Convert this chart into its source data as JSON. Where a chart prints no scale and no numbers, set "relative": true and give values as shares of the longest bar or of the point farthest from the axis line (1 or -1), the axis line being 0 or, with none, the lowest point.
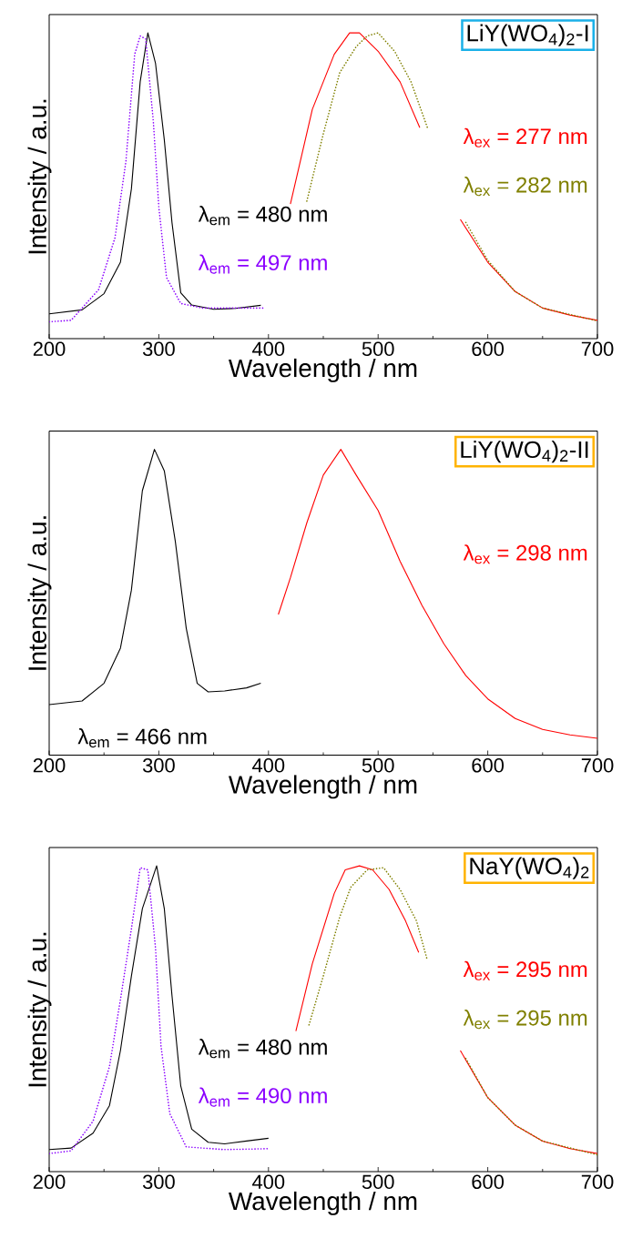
{
  "chart_data": [
    {
      "type": "line",
      "title": "LiY(WO$_{4}$)$_{2}$-I",
      "xlabel": "Wavelength / nm",
      "ylabel": "Intensity / a.u.",
      "relative": true,
      "xlim": [
        200,
        700
      ],
      "xticks": [
        200,
        300,
        400,
        500,
        600,
        700
      ],
      "series": [
        {
          "name": "λ$_{em}$ = 480 nm",
          "color": "#000000",
          "line_style": "solid",
          "x": [
            200,
            230,
            250,
            265,
            275,
            283,
            290,
            297,
            305,
            312,
            320,
            330,
            350,
            370,
            393
          ],
          "values": [
            0.081,
            0.094,
            0.147,
            0.25,
            0.49,
            0.84,
            1.0,
            0.9,
            0.65,
            0.38,
            0.15,
            0.11,
            0.096,
            0.099,
            0.109
          ]
        },
        {
          "name": "λ$_{em}$ = 497 nm",
          "color": "#8b00ff",
          "line_style": "dotted",
          "x": [
            200,
            220,
            245,
            260,
            270,
            278,
            283,
            288,
            295,
            300,
            307,
            320,
            340,
            380,
            395
          ],
          "values": [
            0.055,
            0.06,
            0.16,
            0.33,
            0.58,
            0.93,
            0.99,
            0.98,
            0.71,
            0.43,
            0.2,
            0.115,
            0.1,
            0.1,
            0.1
          ]
        },
        {
          "name": "λ$_{ex}$ = 277 nm",
          "color": "#ff0000",
          "line_style": "solid",
          "x": [
            420,
            440,
            460,
            474,
            483,
            500,
            520,
            538,
            555,
            575,
            600,
            625,
            650,
            675,
            700
          ],
          "values": [
            0.44,
            0.75,
            0.93,
            1.0,
            1.0,
            0.94,
            0.84,
            0.69,
            null,
            0.39,
            0.25,
            0.154,
            0.1,
            0.077,
            0.06
          ]
        },
        {
          "name": "λ$_{ex}$ = 282 nm",
          "color": "#808000",
          "line_style": "dotted",
          "x": [
            435,
            450,
            465,
            480,
            490,
            500,
            515,
            530,
            545,
            560,
            580,
            600,
            625,
            650,
            700
          ],
          "values": [
            0.45,
            0.67,
            0.87,
            0.955,
            0.99,
            1.0,
            0.94,
            0.84,
            0.69,
            null,
            0.38,
            0.256,
            0.154,
            0.1,
            0.058
          ]
        }
      ]
    },
    {
      "type": "line",
      "title": "LiY(WO$_{4}$)$_{2}$-II",
      "xlabel": "Wavelength / nm",
      "ylabel": "Intensity / a.u.",
      "relative": true,
      "xlim": [
        200,
        700
      ],
      "xticks": [
        200,
        300,
        400,
        500,
        600,
        700
      ],
      "series": [
        {
          "name": "λ$_{em}$ = 466 nm",
          "color": "#000000",
          "line_style": "solid",
          "x": [
            200,
            230,
            250,
            265,
            275,
            285,
            296,
            305,
            315,
            325,
            335,
            345,
            360,
            380,
            393
          ],
          "values": [
            0.165,
            0.177,
            0.235,
            0.35,
            0.54,
            0.865,
            1.0,
            0.93,
            0.7,
            0.415,
            0.235,
            0.207,
            0.21,
            0.22,
            0.235
          ]
        },
        {
          "name": "λ$_{ex}$ = 298 nm",
          "color": "#ff0000",
          "line_style": "solid",
          "x": [
            409,
            420,
            435,
            450,
            466,
            480,
            500,
            520,
            540,
            560,
            580,
            600,
            625,
            650,
            675,
            700
          ],
          "values": [
            0.46,
            0.58,
            0.76,
            0.916,
            1.0,
            0.916,
            0.8,
            0.634,
            0.49,
            0.364,
            0.26,
            0.184,
            0.12,
            0.084,
            0.066,
            0.055
          ]
        }
      ]
    },
    {
      "type": "line",
      "title": "NaY(WO$_{4}$)$_{2}$",
      "xlabel": "Wavelength / nm",
      "ylabel": "Intensity / a.u.",
      "relative": true,
      "xlim": [
        200,
        700
      ],
      "xticks": [
        200,
        300,
        400,
        500,
        600,
        700
      ],
      "series": [
        {
          "name": "λ$_{em}$ = 480 nm",
          "color": "#000000",
          "line_style": "solid",
          "x": [
            200,
            220,
            240,
            255,
            265,
            275,
            285,
            298,
            305,
            312,
            320,
            330,
            345,
            360,
            380,
            400
          ],
          "values": [
            0.072,
            0.077,
            0.126,
            0.216,
            0.396,
            0.64,
            0.86,
            1.0,
            0.86,
            0.576,
            0.28,
            0.139,
            0.096,
            0.091,
            0.1,
            0.109
          ]
        },
        {
          "name": "λ$_{em}$ = 490 nm",
          "color": "#8b00ff",
          "line_style": "dotted",
          "x": [
            200,
            220,
            240,
            255,
            265,
            275,
            283,
            290,
            297,
            302,
            310,
            325,
            360,
            400
          ],
          "values": [
            0.059,
            0.068,
            0.165,
            0.344,
            0.563,
            0.794,
            0.994,
            0.987,
            0.73,
            0.41,
            0.19,
            0.081,
            0.072,
            0.075
          ]
        },
        {
          "name": "λ$_{ex}$ = 295 nm",
          "color": "#ff0000",
          "line_style": "solid",
          "x": [
            425,
            440,
            460,
            470,
            483,
            495,
            510,
            525,
            537,
            555,
            575,
            600,
            625,
            650,
            675,
            700
          ],
          "values": [
            0.46,
            0.68,
            0.91,
            0.987,
            1.0,
            0.987,
            0.923,
            0.82,
            0.717,
            null,
            0.396,
            0.242,
            0.152,
            0.1,
            0.075,
            0.059
          ]
        },
        {
          "name": "λ$_{ex}$ = 295 nm",
          "color": "#808000",
          "line_style": "dotted",
          "x": [
            437,
            450,
            465,
            475,
            490,
            505,
            520,
            535,
            545,
            560,
            580,
            600,
            625,
            650,
            700
          ],
          "values": [
            0.48,
            0.64,
            0.833,
            0.93,
            0.987,
            0.994,
            0.923,
            0.82,
            0.69,
            null,
            0.37,
            0.242,
            0.152,
            0.1,
            0.055
          ]
        }
      ]
    }
  ]
}
